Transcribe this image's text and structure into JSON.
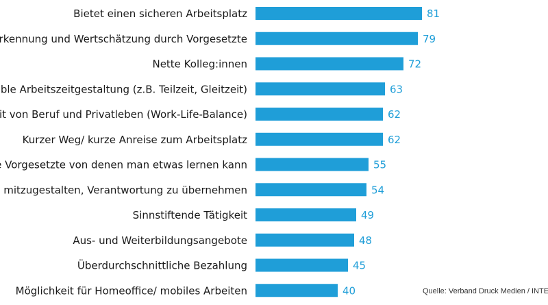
{
  "chart_data": {
    "type": "bar",
    "orientation": "horizontal",
    "categories": [
      "Bietet einen sicheren Arbeitsplatz",
      "Anerkennung und Wertschätzung durch Vorgesetzte",
      "Nette Kolleg:innen",
      "Flexible Arbeitszeitgestaltung (z.B. Teilzeit, Gleitzeit)",
      "Vereinbarkeit von Beruf und Privatleben (Work-Life-Balance)",
      "Kurzer Weg/ kurze Anreise zum Arbeitsplatz",
      "Kompetente Vorgesetzte von denen man etwas lernen kann",
      "Möglichkeit, mitzugestalten, Verantwortung zu übernehmen",
      "Sinnstiftende Tätigkeit",
      "Aus- und Weiterbildungsangebote",
      "Überdurchschnittliche Bezahlung",
      "Möglichkeit für Homeoffice/ mobiles Arbeiten"
    ],
    "values": [
      81,
      79,
      72,
      63,
      62,
      62,
      55,
      54,
      49,
      48,
      45,
      40
    ],
    "value_labels": [
      "81",
      "79",
      "72",
      "63",
      "62",
      "62",
      "55",
      "54",
      "49",
      "48",
      "45",
      "40"
    ],
    "xlim": [
      0,
      100
    ],
    "grid": false,
    "legend": "none",
    "bar_color": "#1f9ed8",
    "label_color": "#1a1a1a",
    "value_color": "#1f9ed8"
  },
  "source": "Quelle: Verband Druck Medien / INTEGRAL"
}
